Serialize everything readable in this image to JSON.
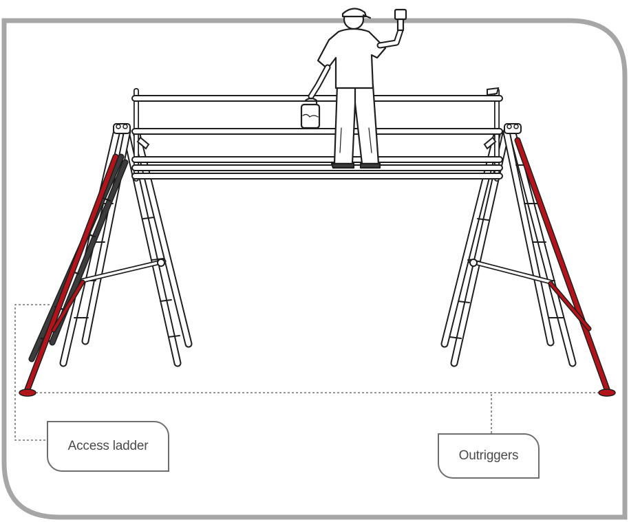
{
  "labels": {
    "access_ladder": "Access ladder",
    "outriggers": "Outriggers"
  },
  "colors": {
    "frame": "#a6a6a6",
    "outline": "#1e1e1e",
    "outrigger": "#b3141b",
    "access_ladder": "#3c3c3c",
    "callout_border": "#6d6d6d",
    "text": "#4a4a4a"
  }
}
